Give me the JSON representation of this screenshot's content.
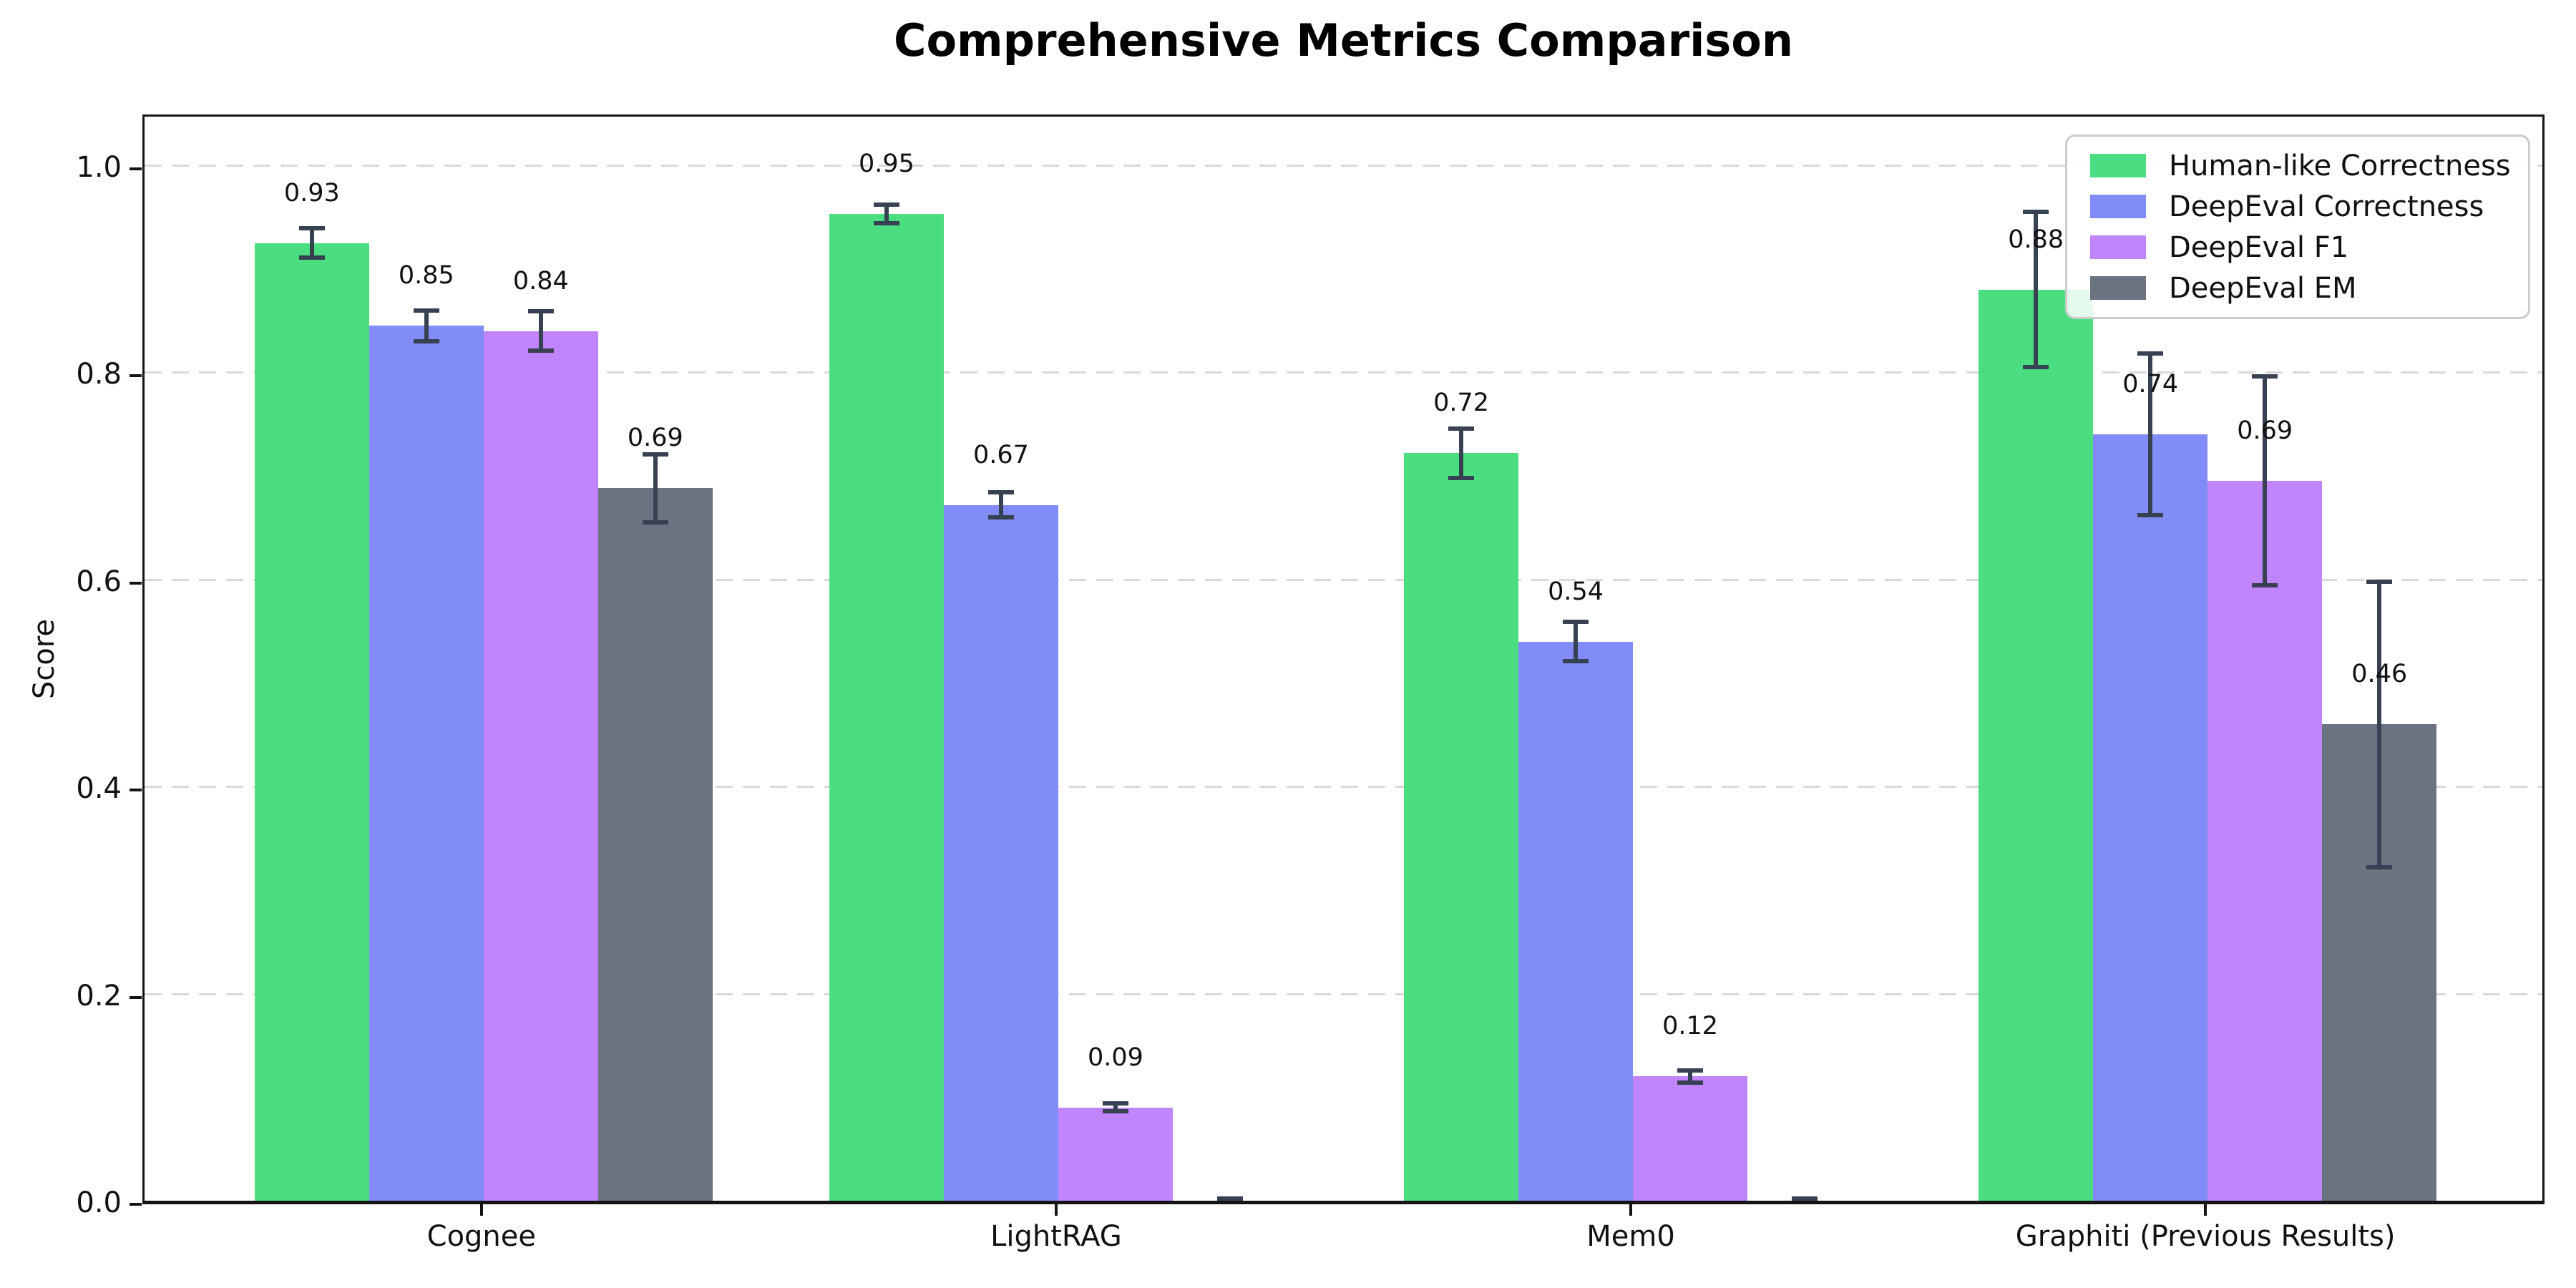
{
  "chart_data": {
    "type": "bar",
    "title": "Comprehensive Metrics Comparison",
    "ylabel": "Score",
    "ylim": [
      0,
      1.05
    ],
    "yticks": [
      "0.0",
      "0.2",
      "0.4",
      "0.6",
      "0.8",
      "1.0"
    ],
    "grid": "horizontal-dashed",
    "legend_position": "upper-right",
    "error_color": "#374151",
    "categories": [
      "Cognee",
      "LightRAG",
      "Mem0",
      "Graphiti (Previous Results)"
    ],
    "series": [
      {
        "name": "Human-like Correctness",
        "color": "#4ade80",
        "values": [
          0.925,
          0.953,
          0.722,
          0.88
        ],
        "errors": [
          0.016,
          0.011,
          0.026,
          0.077
        ],
        "value_labels": [
          "0.93",
          "0.95",
          "0.72",
          "0.88"
        ]
      },
      {
        "name": "DeepEval Correctness",
        "color": "#818cf8",
        "values": [
          0.845,
          0.672,
          0.54,
          0.74
        ],
        "errors": [
          0.017,
          0.014,
          0.021,
          0.08
        ],
        "value_labels": [
          "0.85",
          "0.67",
          "0.54",
          "0.74"
        ]
      },
      {
        "name": "DeepEval F1",
        "color": "#c084fc",
        "values": [
          0.84,
          0.09,
          0.12,
          0.695
        ],
        "errors": [
          0.021,
          0.006,
          0.008,
          0.103
        ],
        "value_labels": [
          "0.84",
          "0.09",
          "0.12",
          "0.69"
        ]
      },
      {
        "name": "DeepEval EM",
        "color": "#6b7280",
        "values": [
          0.688,
          0.0,
          0.0,
          0.46
        ],
        "errors": [
          0.035,
          0.004,
          0.004,
          0.14
        ],
        "value_labels": [
          "0.69",
          "",
          "",
          "0.46"
        ]
      }
    ]
  }
}
